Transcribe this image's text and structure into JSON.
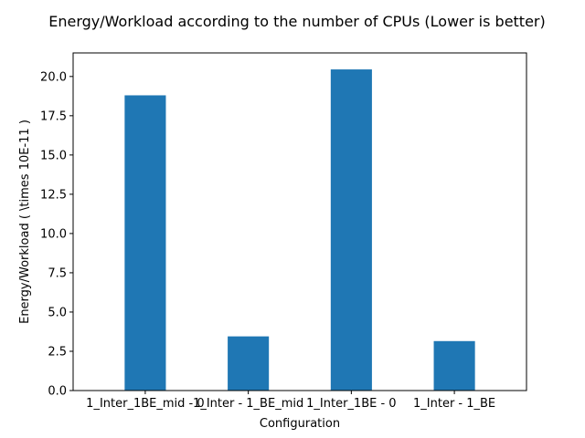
{
  "chart_data": {
    "type": "bar",
    "title": "Energy/Workload according to the number of CPUs (Lower is better)",
    "xlabel": "Configuration",
    "ylabel": "Energy/Workload ( \\times 10E-11 )",
    "categories": [
      "1_Inter_1BE_mid - 0",
      "1_Inter - 1_BE_mid",
      "1_Inter_1BE - 0",
      "1_Inter - 1_BE"
    ],
    "values": [
      18.8,
      3.45,
      20.45,
      3.15
    ],
    "ylim": [
      0,
      21.5
    ],
    "yticks": [
      0.0,
      2.5,
      5.0,
      7.5,
      10.0,
      12.5,
      15.0,
      17.5,
      20.0
    ],
    "ytick_labels": [
      "0.0",
      "2.5",
      "5.0",
      "7.5",
      "10.0",
      "12.5",
      "15.0",
      "17.5",
      "20.0"
    ],
    "bar_color": "#1f77b4",
    "grid": false,
    "legend": false
  }
}
